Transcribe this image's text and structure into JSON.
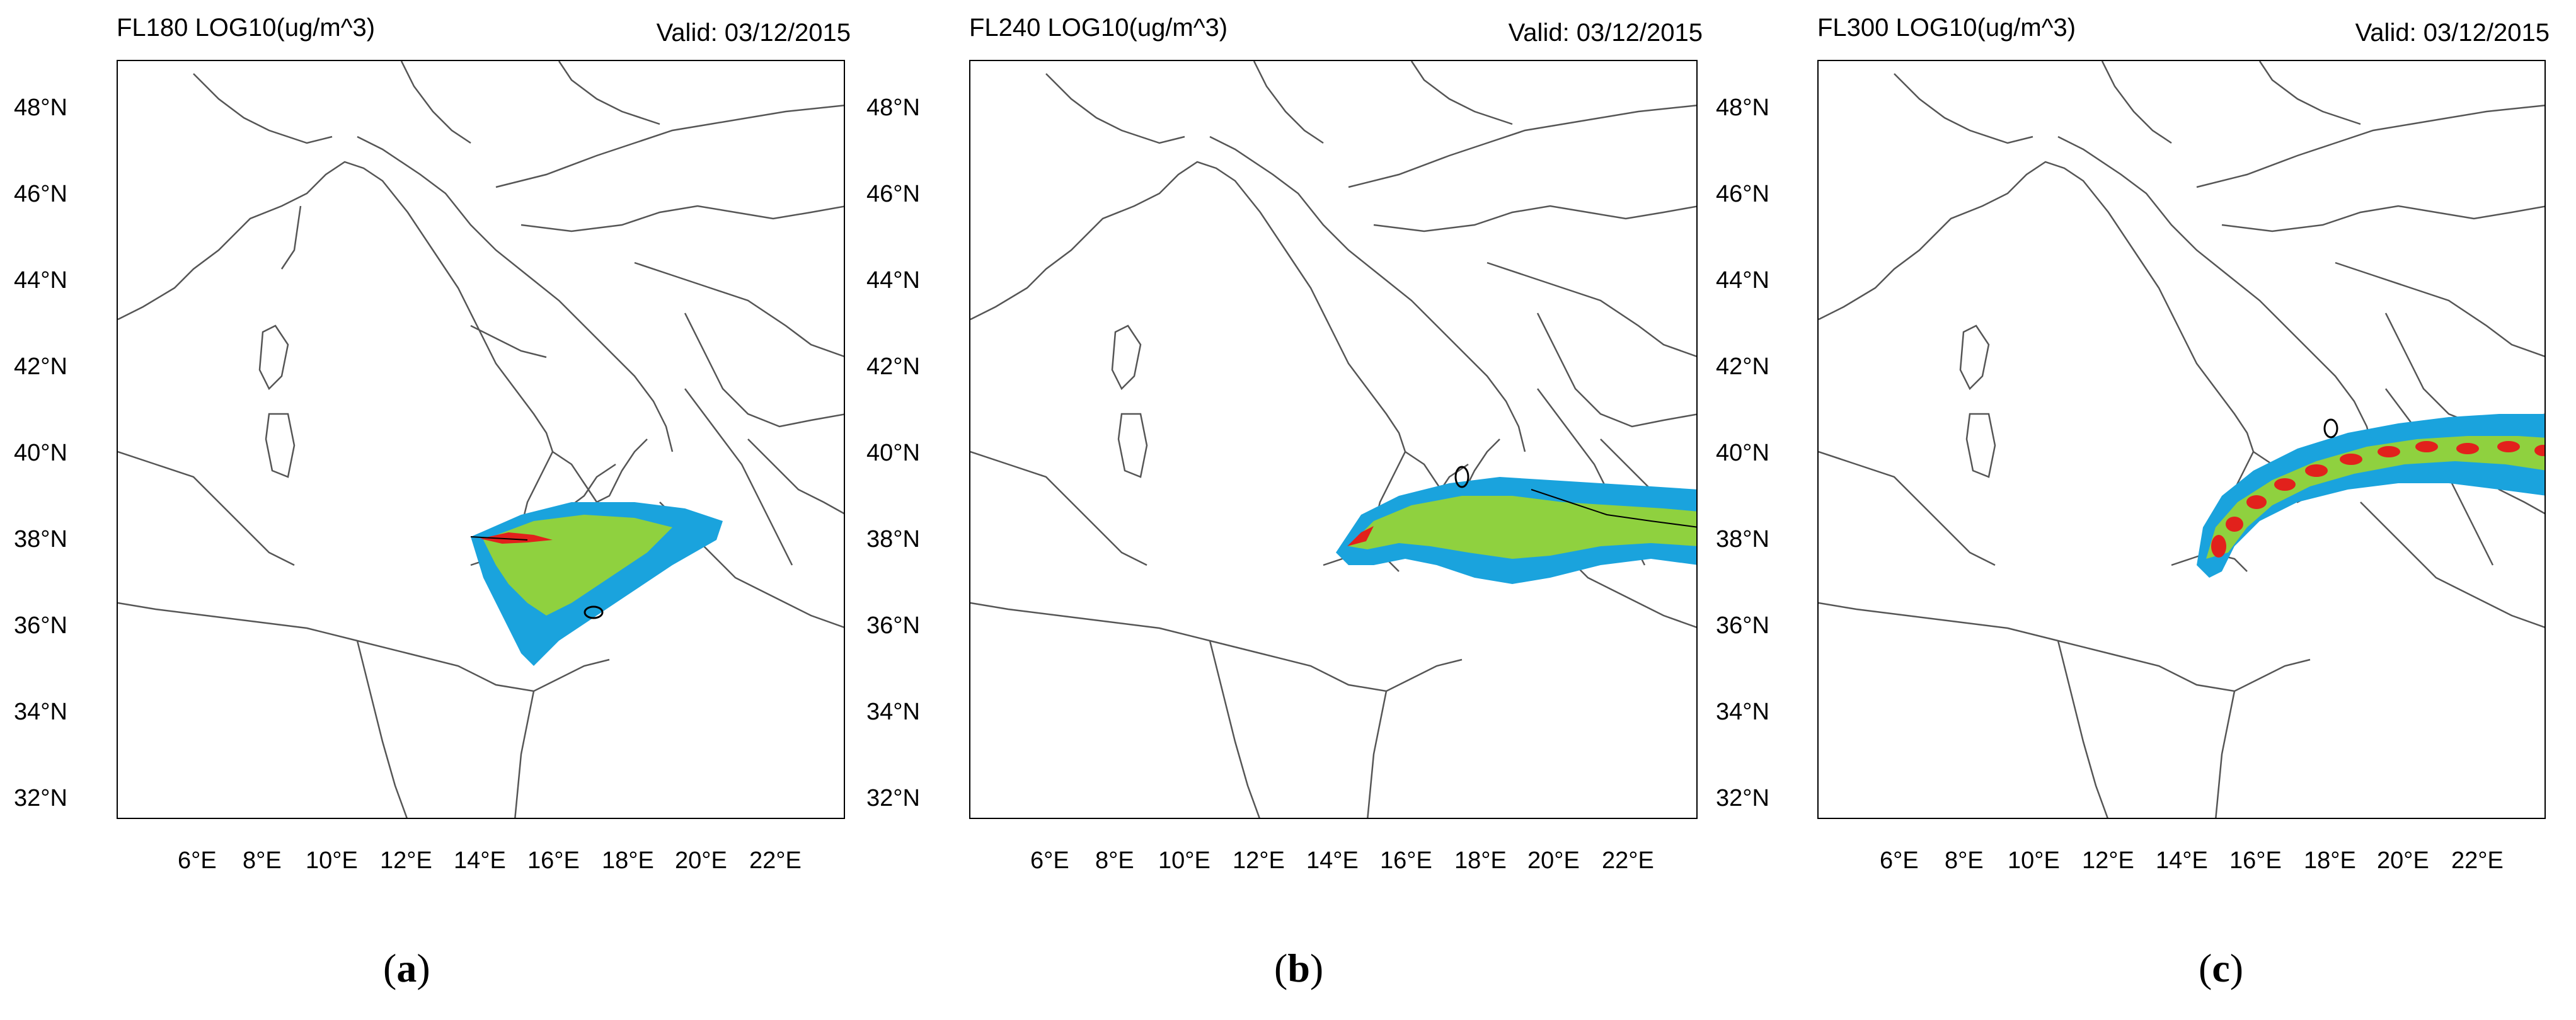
{
  "latitude_labels": [
    "48°N",
    "46°N",
    "44°N",
    "42°N",
    "40°N",
    "38°N",
    "36°N",
    "34°N",
    "32°N"
  ],
  "longitude_labels": [
    "6°E",
    "8°E",
    "10°E",
    "12°E",
    "14°E",
    "16°E",
    "18°E",
    "20°E",
    "22°E"
  ],
  "panels": [
    {
      "title": "FL180 LOG10(ug/m^3)",
      "valid": "Valid: 03/12/2015",
      "letter": "a"
    },
    {
      "title": "FL240 LOG10(ug/m^3)",
      "valid": "Valid: 03/12/2015",
      "letter": "b"
    },
    {
      "title": "FL300 LOG10(ug/m^3)",
      "valid": "Valid: 03/12/2015",
      "letter": "c"
    }
  ],
  "colors": {
    "low": "#1aa3dd",
    "mid": "#8fd13f",
    "high": "#e2211c",
    "contour": "#000000",
    "coast": "#555555"
  }
}
